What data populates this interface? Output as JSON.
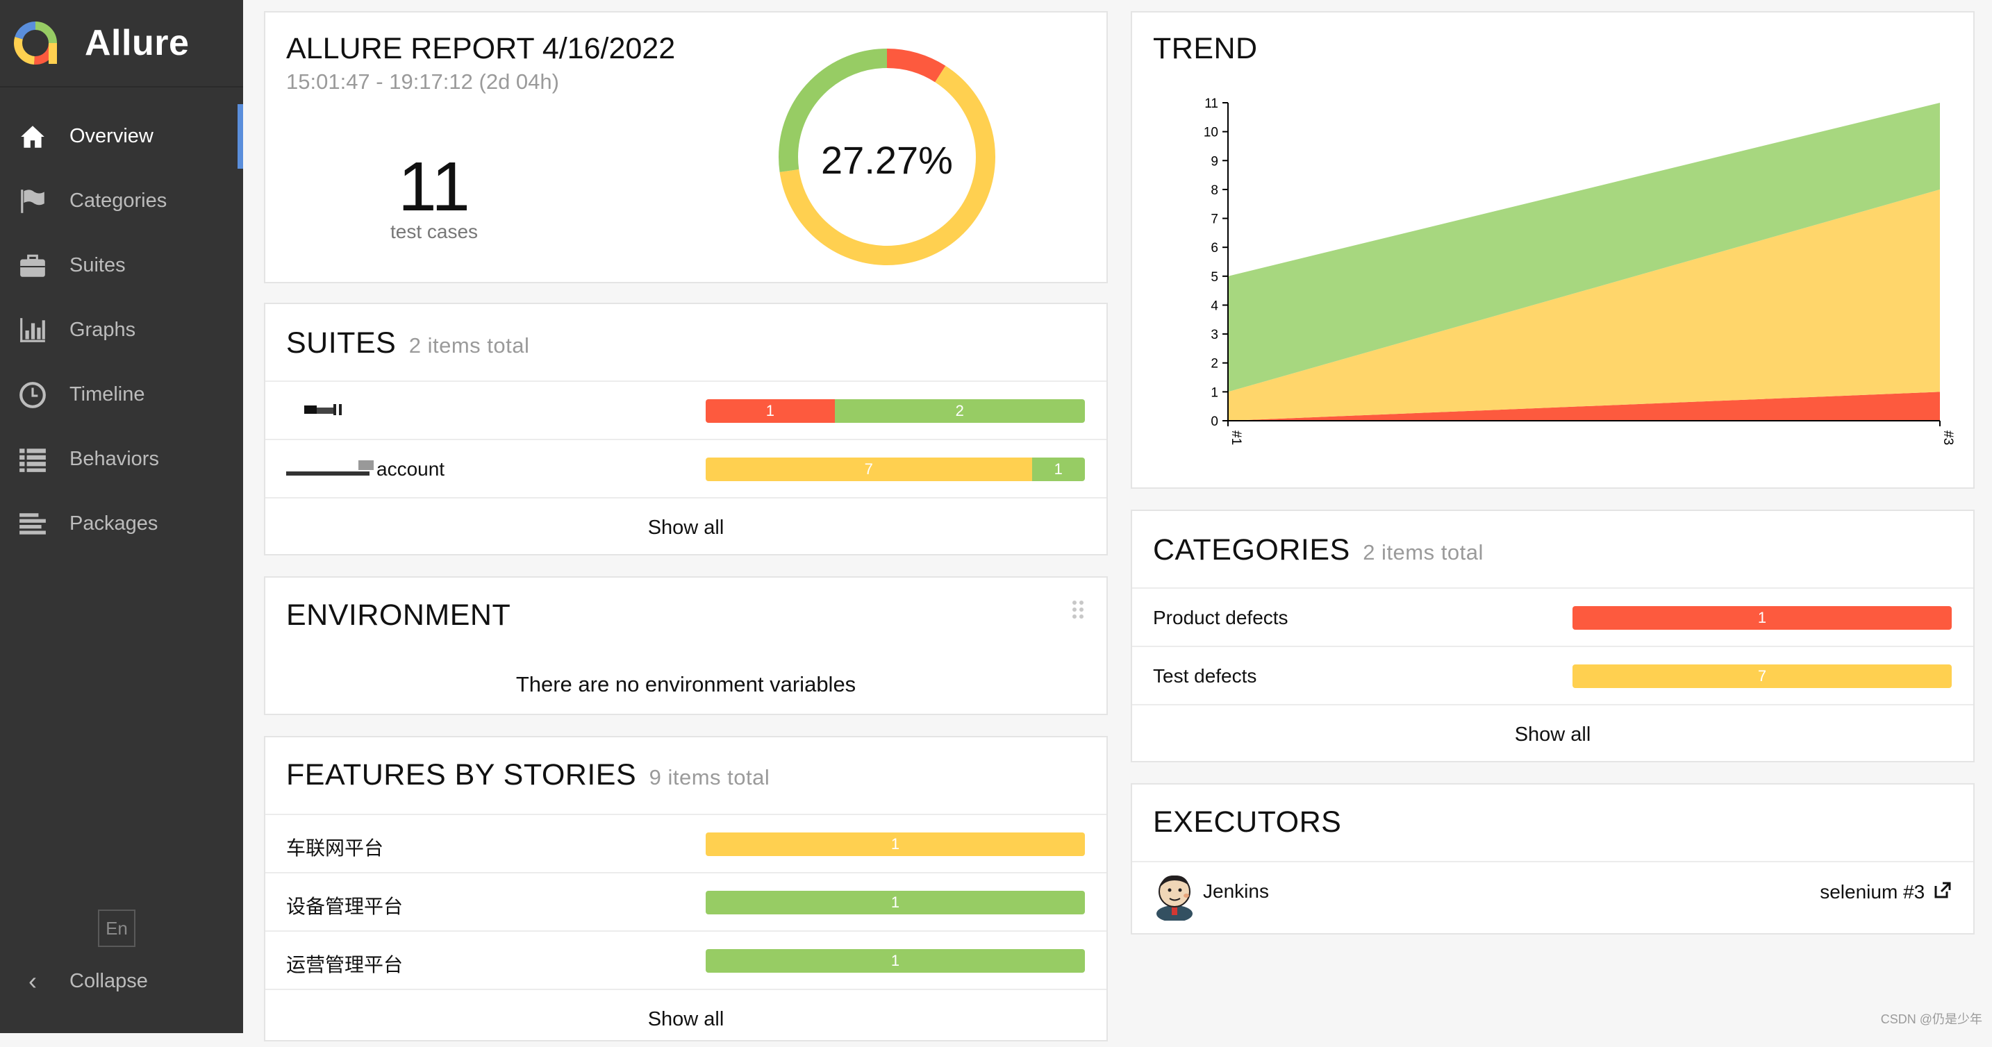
{
  "sidebar": {
    "brand": "Allure",
    "items": [
      {
        "label": "Overview",
        "icon": "home-icon"
      },
      {
        "label": "Categories",
        "icon": "flag-icon"
      },
      {
        "label": "Suites",
        "icon": "briefcase-icon"
      },
      {
        "label": "Graphs",
        "icon": "bar-chart-icon"
      },
      {
        "label": "Timeline",
        "icon": "clock-icon"
      },
      {
        "label": "Behaviors",
        "icon": "list-icon"
      },
      {
        "label": "Packages",
        "icon": "align-left-icon"
      }
    ],
    "language": "En",
    "collapse": "Collapse"
  },
  "summary": {
    "title": "ALLURE REPORT 4/16/2022",
    "time_range": "15:01:47 - 19:17:12 (2d 04h)",
    "test_count": "11",
    "test_count_label": "test cases",
    "percent": "27.27%",
    "donut": {
      "failed": 1,
      "broken": 7,
      "passed": 3
    }
  },
  "suites": {
    "title": "SUITES",
    "count": "2 items total",
    "rows": [
      {
        "name": "",
        "segments": [
          {
            "status": "failed",
            "value": "1"
          },
          {
            "status": "passed",
            "value": "2"
          }
        ]
      },
      {
        "name": "account",
        "segments": [
          {
            "status": "broken",
            "value": "7"
          },
          {
            "status": "passed",
            "value": "1"
          }
        ]
      }
    ],
    "show_all": "Show all"
  },
  "environment": {
    "title": "ENVIRONMENT",
    "empty": "There are no environment variables"
  },
  "features": {
    "title": "FEATURES BY STORIES",
    "count": "9 items total",
    "rows": [
      {
        "name": "车联网平台",
        "status": "broken",
        "value": "1"
      },
      {
        "name": "设备管理平台",
        "status": "passed",
        "value": "1"
      },
      {
        "name": "运营管理平台",
        "status": "passed",
        "value": "1"
      }
    ],
    "show_all": "Show all"
  },
  "trend": {
    "title": "TREND"
  },
  "chart_data": {
    "type": "area",
    "title": "TREND",
    "x": [
      "#1",
      "#3"
    ],
    "ylim": [
      0,
      11
    ],
    "yticks": [
      "0",
      "1",
      "2",
      "3",
      "4",
      "5",
      "6",
      "7",
      "8",
      "9",
      "10",
      "11"
    ],
    "series": [
      {
        "name": "failed",
        "values": [
          0,
          1
        ]
      },
      {
        "name": "broken",
        "values": [
          1,
          7
        ]
      },
      {
        "name": "passed",
        "values": [
          4,
          3
        ]
      }
    ],
    "stacked": true
  },
  "categories": {
    "title": "CATEGORIES",
    "count": "2 items total",
    "rows": [
      {
        "name": "Product defects",
        "status": "failed",
        "value": "1"
      },
      {
        "name": "Test defects",
        "status": "broken",
        "value": "7"
      }
    ],
    "show_all": "Show all"
  },
  "executors": {
    "title": "EXECUTORS",
    "name": "Jenkins",
    "build": "selenium #3"
  },
  "watermark": "CSDN @仍是少年",
  "colors": {
    "failed": "#fd5a3e",
    "broken": "#ffd050",
    "passed": "#97cc64",
    "sidebar": "#343434",
    "accent": "#5a8edb"
  }
}
